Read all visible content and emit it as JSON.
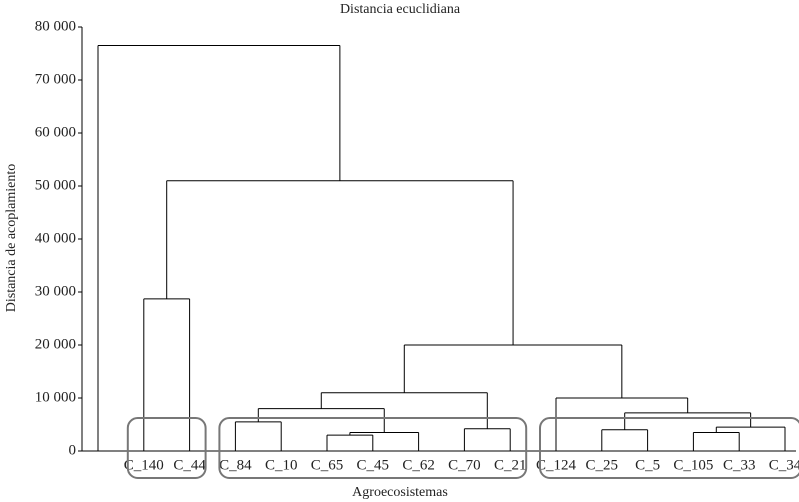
{
  "chart_data": {
    "type": "dendrogram",
    "title": "Distancia ecuclidiana",
    "x_label": "Agroecosistemas",
    "y_label": "Distancia de acoplamiento",
    "categories": [
      null,
      "C_140",
      "C_44",
      "C_84",
      "C_10",
      "C_65",
      "C_45",
      "C_62",
      "C_70",
      "C_21",
      "C_124",
      "C_25",
      "C_5",
      "C_105",
      "C_33",
      "C_34"
    ],
    "merges": [
      {
        "children": [
          3,
          4
        ],
        "height": 5500
      },
      {
        "children": [
          5,
          6
        ],
        "height": 3000
      },
      {
        "children": [
          17,
          7
        ],
        "height": 3500
      },
      {
        "children": [
          8,
          9
        ],
        "height": 4200
      },
      {
        "children": [
          16,
          18
        ],
        "height": 8000
      },
      {
        "children": [
          20,
          19
        ],
        "height": 11000
      },
      {
        "children": [
          11,
          12
        ],
        "height": 4000
      },
      {
        "children": [
          13,
          14
        ],
        "height": 3500
      },
      {
        "children": [
          23,
          15
        ],
        "height": 4500
      },
      {
        "children": [
          22,
          24
        ],
        "height": 7200
      },
      {
        "children": [
          10,
          25
        ],
        "height": 10000
      },
      {
        "children": [
          21,
          26
        ],
        "height": 20000
      },
      {
        "children": [
          1,
          2
        ],
        "height": 28700
      },
      {
        "children": [
          28,
          27
        ],
        "height": 51000
      },
      {
        "children": [
          0,
          29
        ],
        "height": 76500
      }
    ],
    "color": "#000000",
    "ylim": [
      0,
      80000
    ],
    "yticks": [
      {
        "value": 0,
        "label": "0"
      },
      {
        "value": 10000,
        "label": "10 000"
      },
      {
        "value": 20000,
        "label": "20 000"
      },
      {
        "value": 30000,
        "label": "30 000"
      },
      {
        "value": 40000,
        "label": "40 000"
      },
      {
        "value": 50000,
        "label": "50 000"
      },
      {
        "value": 60000,
        "label": "60 000"
      },
      {
        "value": 70000,
        "label": "70 000"
      },
      {
        "value": 80000,
        "label": "80 000"
      }
    ]
  }
}
